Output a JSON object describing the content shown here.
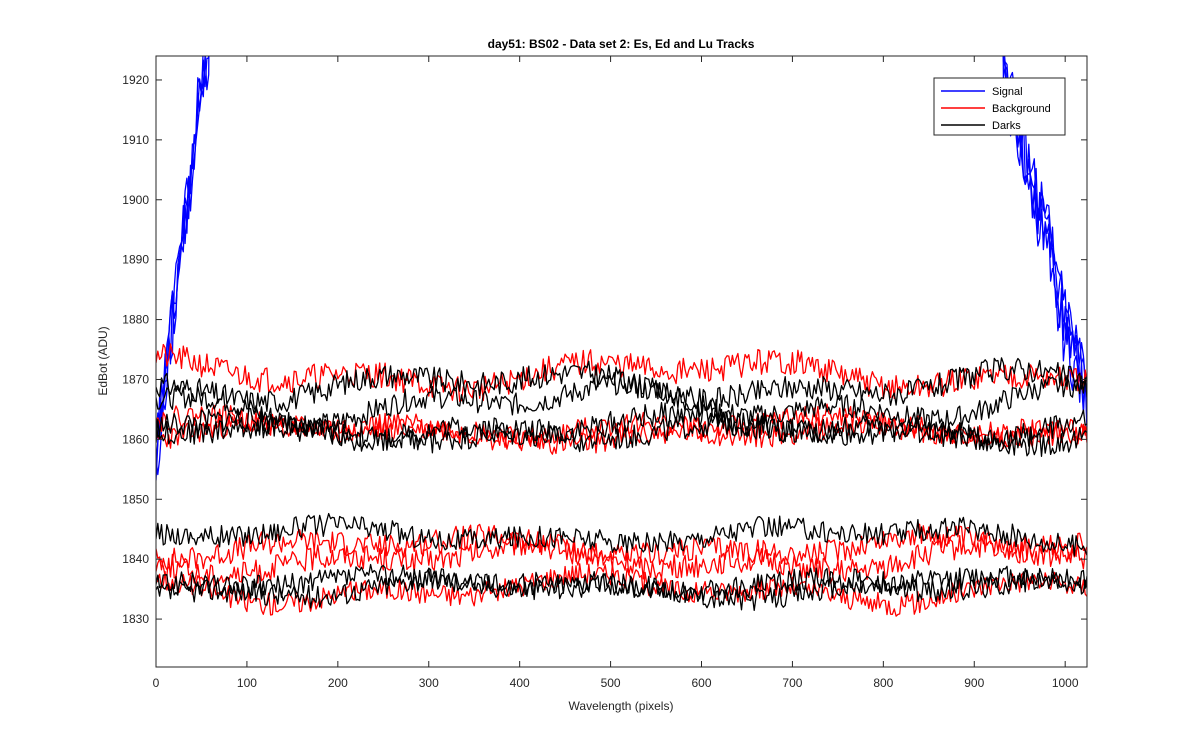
{
  "chart_data": {
    "type": "line",
    "title": "day51: BS02 - Data set 2: Es, Ed and Lu Tracks",
    "xlabel": "Wavelength (pixels)",
    "ylabel": "EdBot (ADU)",
    "xlim": [
      0,
      1024
    ],
    "ylim": [
      1822,
      1924
    ],
    "x_ticks": [
      0,
      100,
      200,
      300,
      400,
      500,
      600,
      700,
      800,
      900,
      1000
    ],
    "y_ticks": [
      1830,
      1840,
      1850,
      1860,
      1870,
      1880,
      1890,
      1900,
      1910,
      1920
    ],
    "grid": false,
    "legend": {
      "position": "top-right",
      "entries": [
        {
          "label": "Signal",
          "color": "#0000ff"
        },
        {
          "label": "Background",
          "color": "#ff0000"
        },
        {
          "label": "Darks",
          "color": "#000000"
        }
      ]
    },
    "series": [
      {
        "name": "Signal",
        "color": "#0000ff",
        "shape": "u",
        "start": 1860,
        "rise_end": 60,
        "fall_start": 930,
        "end": 1870,
        "noise": 5,
        "copies": 4,
        "seed": 11
      },
      {
        "name": "Background",
        "color": "#ff0000",
        "base": 1871,
        "noise": 1.4,
        "wave": 1.6,
        "seed": 21
      },
      {
        "name": "Background",
        "color": "#ff0000",
        "base": 1862,
        "noise": 1.2,
        "wave": 1.2,
        "seed": 22
      },
      {
        "name": "Background",
        "color": "#ff0000",
        "base": 1861,
        "noise": 1.2,
        "wave": 1.0,
        "seed": 23
      },
      {
        "name": "Background",
        "color": "#ff0000",
        "base": 1842,
        "noise": 1.3,
        "wave": 1.2,
        "seed": 24
      },
      {
        "name": "Background",
        "color": "#ff0000",
        "base": 1840,
        "noise": 1.3,
        "wave": 1.5,
        "seed": 25
      },
      {
        "name": "Background",
        "color": "#ff0000",
        "base": 1835,
        "noise": 1.2,
        "wave": 1.5,
        "seed": 26
      },
      {
        "name": "Darks",
        "color": "#000000",
        "base": 1869,
        "noise": 1.3,
        "wave": 1.6,
        "seed": 31
      },
      {
        "name": "Darks",
        "color": "#000000",
        "base": 1866,
        "noise": 1.2,
        "wave": 2.0,
        "seed": 32
      },
      {
        "name": "Darks",
        "color": "#000000",
        "base": 1862,
        "noise": 1.3,
        "wave": 1.2,
        "seed": 33
      },
      {
        "name": "Darks",
        "color": "#000000",
        "base": 1861,
        "noise": 1.3,
        "wave": 1.0,
        "seed": 34
      },
      {
        "name": "Darks",
        "color": "#000000",
        "base": 1844,
        "noise": 1.2,
        "wave": 1.0,
        "seed": 35
      },
      {
        "name": "Darks",
        "color": "#000000",
        "base": 1836,
        "noise": 1.2,
        "wave": 0.8,
        "seed": 36
      },
      {
        "name": "Darks",
        "color": "#000000",
        "base": 1835,
        "noise": 1.2,
        "wave": 1.0,
        "seed": 37
      }
    ]
  }
}
